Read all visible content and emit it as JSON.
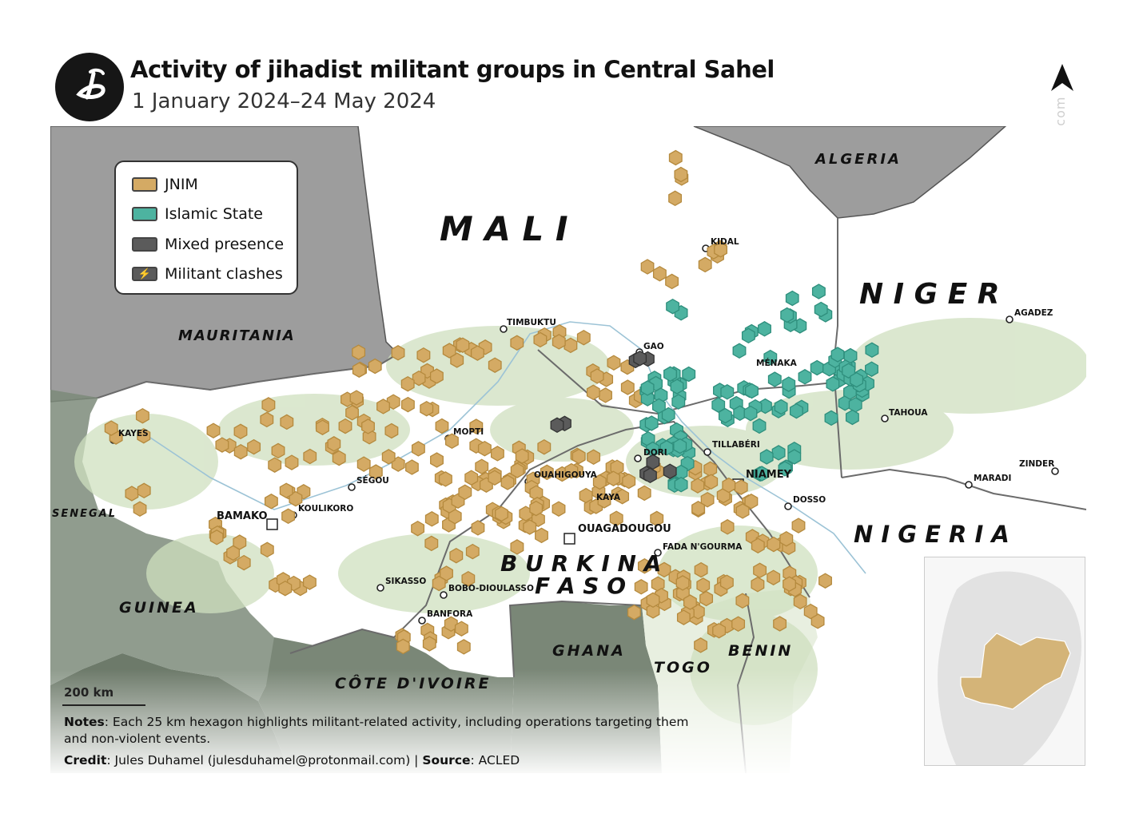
{
  "title": "Activity of jihadist militant groups in Central Sahel",
  "subtitle": "1 January 2024–24 May 2024",
  "watermark": "www.julesduhamel.com",
  "legend": {
    "items": [
      {
        "label": "JNIM",
        "color": "#d4aa64",
        "icon": "jnim-swatch"
      },
      {
        "label": "Islamic State",
        "color": "#4db3a0",
        "icon": "islamic-state-swatch"
      },
      {
        "label": "Mixed presence",
        "color": "#5b5b5b",
        "icon": "mixed-presence-swatch"
      },
      {
        "label": "Militant clashes",
        "color": "#5b5b5b",
        "icon": "lightning-bolt-icon"
      }
    ]
  },
  "countries": {
    "mali": "M A L I",
    "niger": "N I G E R",
    "nigeria": "N I G E R I A",
    "algeria": "ALGERIA",
    "mauritania": "MAURITANIA",
    "senegal": "SENEGAL",
    "guinea": "GUINEA",
    "burkina_line1": "B U R K I N A",
    "burkina_line2": "F A S O",
    "ghana": "GHANA",
    "togo": "TOGO",
    "benin": "BENIN",
    "cote": "CÔTE D'IVOIRE"
  },
  "cities": [
    {
      "name": "KIDAL"
    },
    {
      "name": "GAO"
    },
    {
      "name": "MÉNAKA"
    },
    {
      "name": "TIMBUKTU"
    },
    {
      "name": "AGADEZ"
    },
    {
      "name": "TAHOUA"
    },
    {
      "name": "KAYES"
    },
    {
      "name": "MOPTI"
    },
    {
      "name": "TILLABÉRI"
    },
    {
      "name": "DORI"
    },
    {
      "name": "NIAMEY"
    },
    {
      "name": "SÉGOU"
    },
    {
      "name": "OUAHIGOUYA"
    },
    {
      "name": "ZINDER"
    },
    {
      "name": "MARADI"
    },
    {
      "name": "KAYA"
    },
    {
      "name": "DOSSO"
    },
    {
      "name": "BAMAKO"
    },
    {
      "name": "KOULIKORO"
    },
    {
      "name": "OUAGADOUGOU"
    },
    {
      "name": "FADA N'GOURMA"
    },
    {
      "name": "SIKASSO"
    },
    {
      "name": "BOBO-DIOULASSO"
    },
    {
      "name": "BANFORA"
    }
  ],
  "scale_label": "200 km",
  "notes_label": "Notes",
  "notes_text": ": Each 25 km hexagon highlights militant-related activity, including operations targeting them and non-violent events.",
  "credit_label": "Credit",
  "credit_text": ": Jules Duhamel (julesduhamel@protonmail.com) | ",
  "source_label": "Source",
  "source_text": ": ACLED"
}
